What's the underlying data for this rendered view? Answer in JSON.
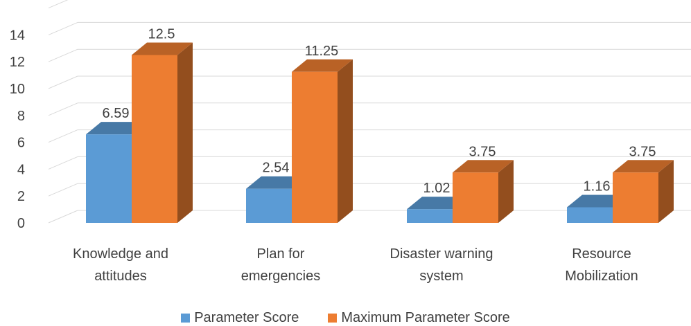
{
  "chart_data": {
    "type": "bar",
    "categories": [
      "Knowledge and attitudes",
      "Plan for emergencies",
      "Disaster warning system",
      "Resource Mobilization"
    ],
    "series": [
      {
        "name": "Parameter Score",
        "values": [
          6.59,
          2.54,
          1.02,
          1.16
        ],
        "labels": [
          "6.59",
          "2.54",
          "1.02",
          "1.16"
        ],
        "color": "#5b9bd5"
      },
      {
        "name": "Maximum Parameter Score",
        "values": [
          12.5,
          11.25,
          3.75,
          3.75
        ],
        "labels": [
          "12.5",
          "11.25",
          "3.75",
          "3.75"
        ],
        "color": "#ed7d31"
      }
    ],
    "ylim": [
      0,
      16
    ],
    "yticks": [
      "0",
      "2",
      "4",
      "6",
      "8",
      "10",
      "12",
      "14"
    ],
    "grid": true,
    "three_d": true,
    "legend_position": "bottom"
  }
}
